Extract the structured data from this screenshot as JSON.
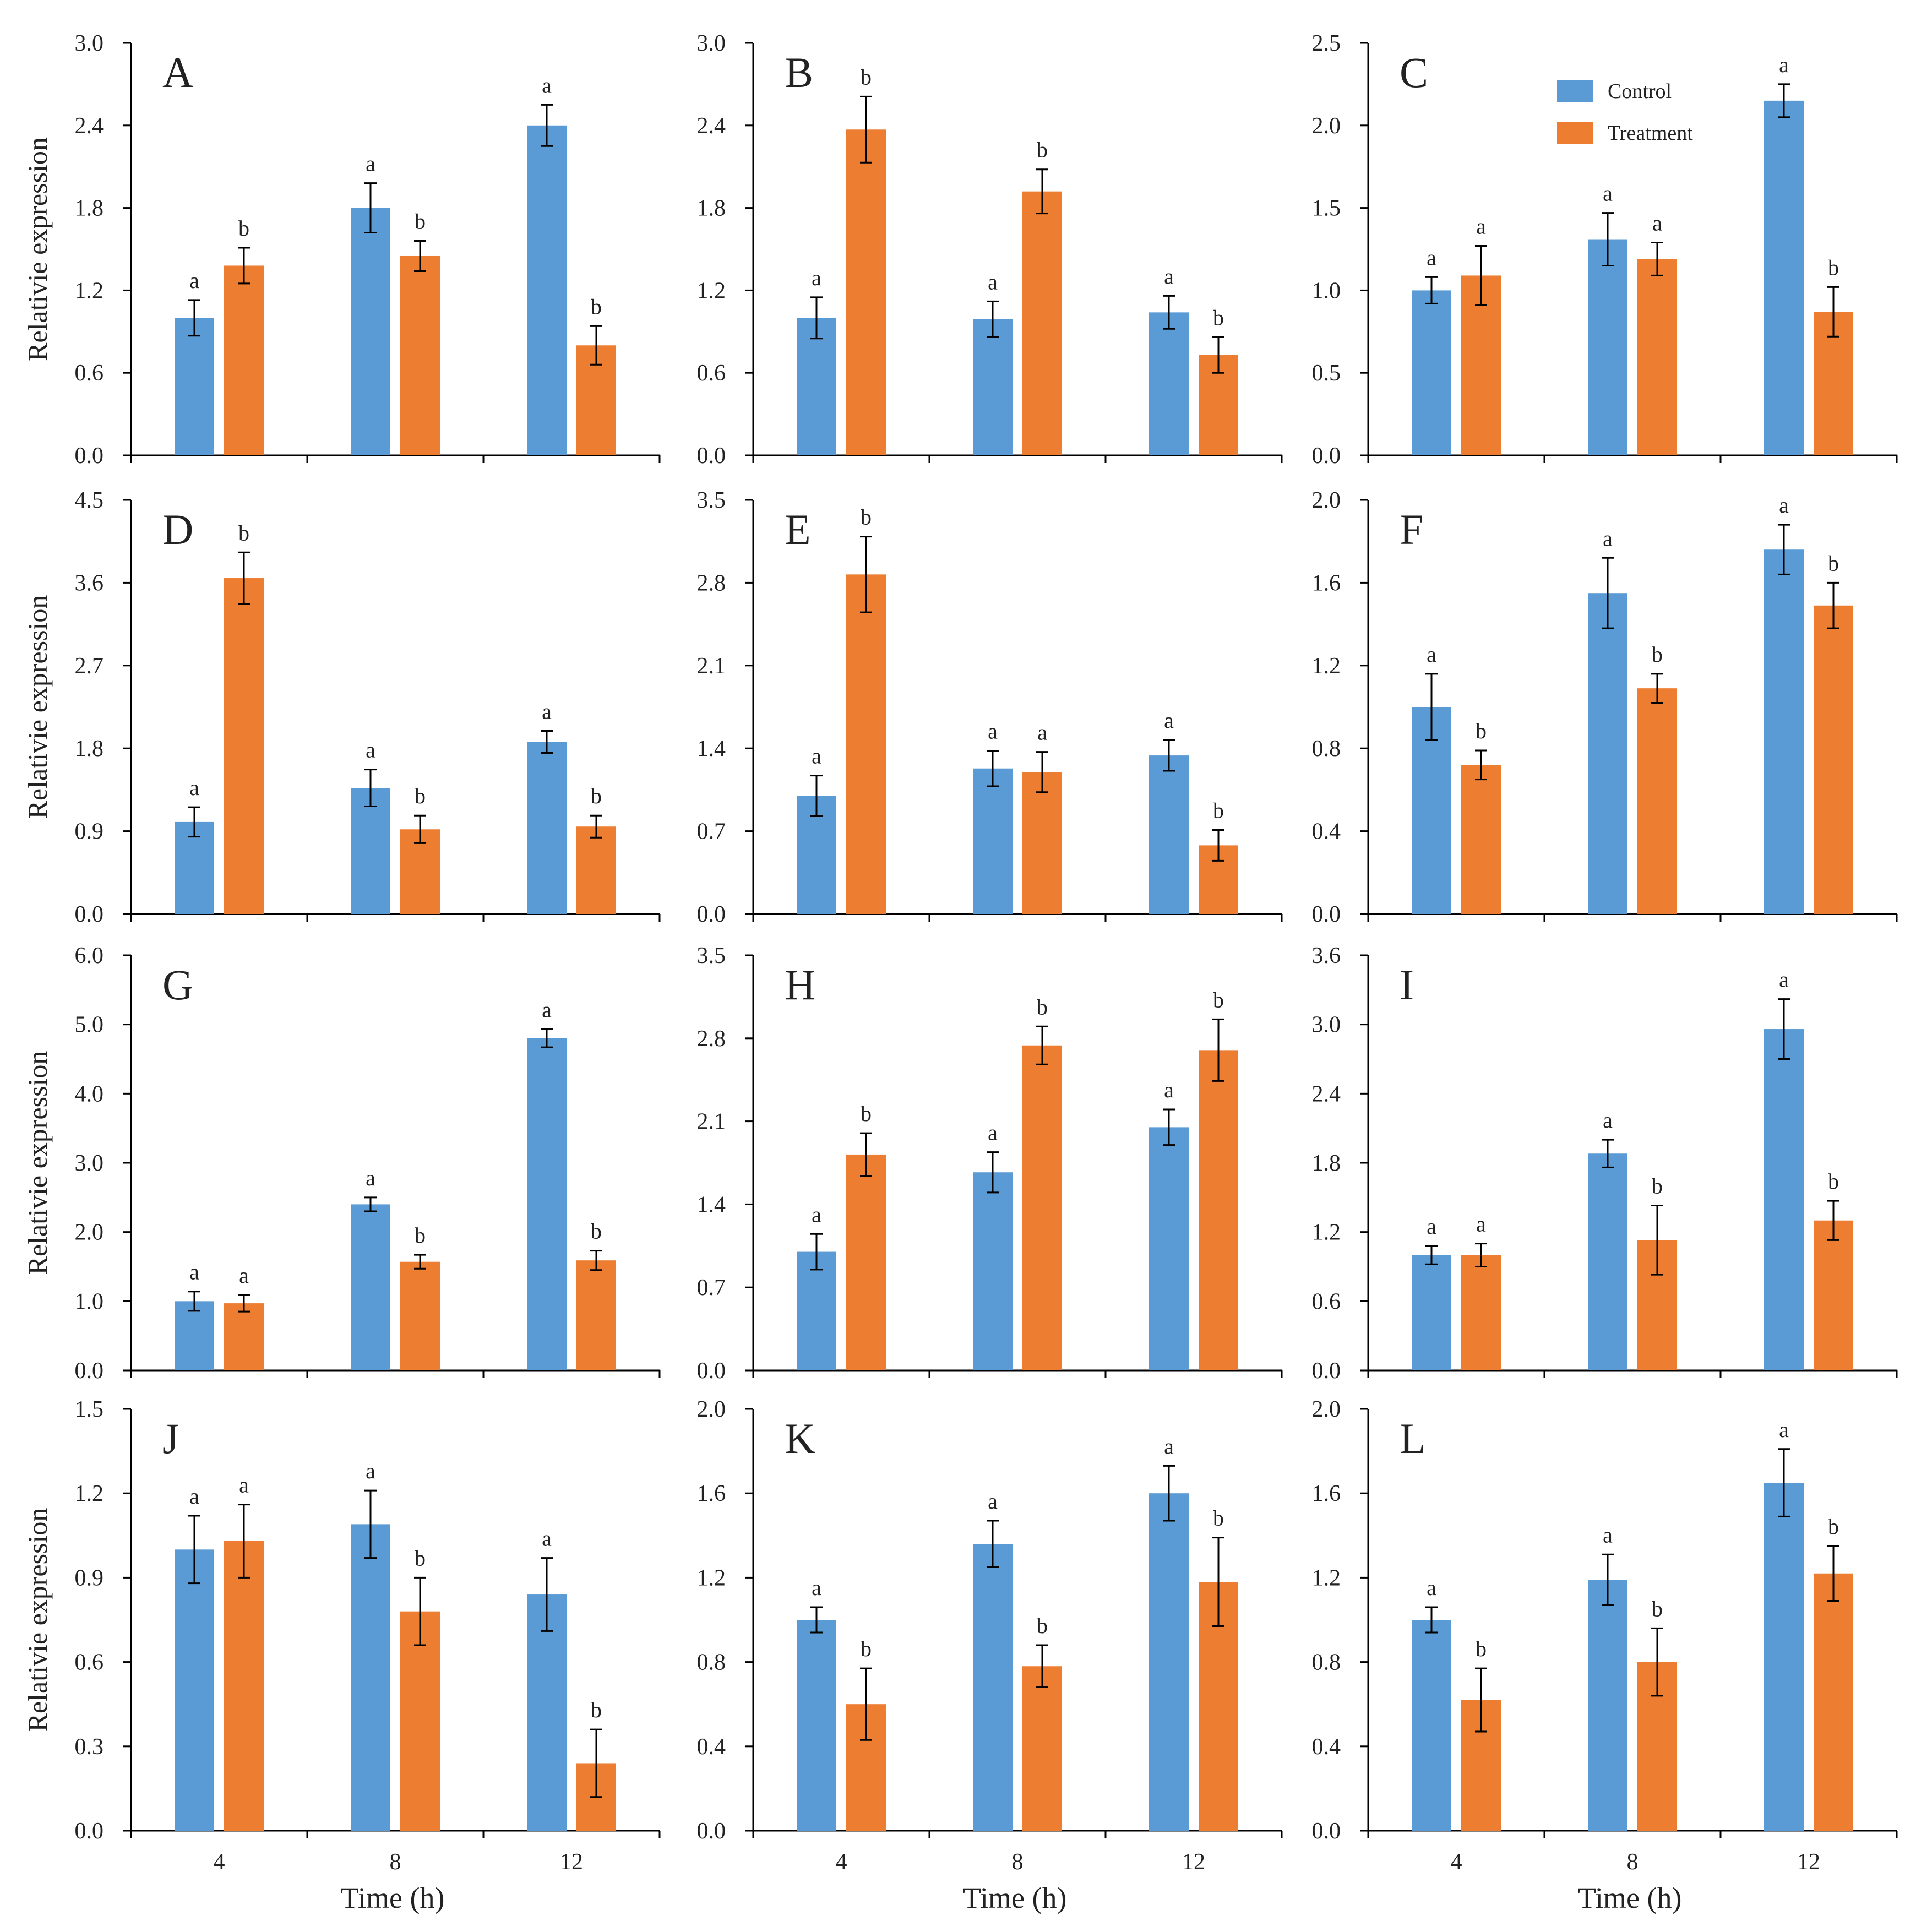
{
  "figure": {
    "legend": [
      {
        "name": "Control",
        "color": "#5B9BD5"
      },
      {
        "name": "Treatment",
        "color": "#ED7D31"
      }
    ],
    "x_label": "Time (h)",
    "y_label": "Relativie expression",
    "error_bar_color": "#000000"
  },
  "chart_data": [
    {
      "type": "bar",
      "panel": "A",
      "categories": [
        "4",
        "8",
        "12"
      ],
      "ylim": [
        0,
        3.0
      ],
      "ticks": [
        "0.0",
        "0.6",
        "1.2",
        "1.8",
        "2.4",
        "3.0"
      ],
      "ylabel": "Relativie expression",
      "xlabel": "",
      "series": [
        {
          "name": "Control",
          "values": [
            1.0,
            1.8,
            2.4
          ],
          "errors": [
            0.13,
            0.18,
            0.15
          ],
          "labels": [
            "a",
            "a",
            "a"
          ]
        },
        {
          "name": "Treatment",
          "values": [
            1.38,
            1.45,
            0.8
          ],
          "errors": [
            0.13,
            0.11,
            0.14
          ],
          "labels": [
            "b",
            "b",
            "b"
          ]
        }
      ]
    },
    {
      "type": "bar",
      "panel": "B",
      "categories": [
        "4",
        "8",
        "12"
      ],
      "ylim": [
        0,
        3.0
      ],
      "ticks": [
        "0.0",
        "0.6",
        "1.2",
        "1.8",
        "2.4",
        "3.0"
      ],
      "ylabel": "",
      "xlabel": "",
      "series": [
        {
          "name": "Control",
          "values": [
            1.0,
            0.99,
            1.04
          ],
          "errors": [
            0.15,
            0.13,
            0.12
          ],
          "labels": [
            "a",
            "a",
            "a"
          ]
        },
        {
          "name": "Treatment",
          "values": [
            2.37,
            1.92,
            0.73
          ],
          "errors": [
            0.24,
            0.16,
            0.13
          ],
          "labels": [
            "b",
            "b",
            "b"
          ]
        }
      ]
    },
    {
      "type": "bar",
      "panel": "C",
      "categories": [
        "4",
        "8",
        "12"
      ],
      "ylim": [
        0,
        2.5
      ],
      "ticks": [
        "0.0",
        "0.5",
        "1.0",
        "1.5",
        "2.0",
        "2.5"
      ],
      "ylabel": "",
      "xlabel": "",
      "series": [
        {
          "name": "Control",
          "values": [
            1.0,
            1.31,
            2.15
          ],
          "errors": [
            0.08,
            0.16,
            0.1
          ],
          "labels": [
            "a",
            "a",
            "a"
          ]
        },
        {
          "name": "Treatment",
          "values": [
            1.09,
            1.19,
            0.87
          ],
          "errors": [
            0.18,
            0.1,
            0.15
          ],
          "labels": [
            "a",
            "a",
            "b"
          ]
        }
      ]
    },
    {
      "type": "bar",
      "panel": "D",
      "categories": [
        "4",
        "8",
        "12"
      ],
      "ylim": [
        0,
        4.5
      ],
      "ticks": [
        "0.0",
        "0.9",
        "1.8",
        "2.7",
        "3.6",
        "4.5"
      ],
      "ylabel": "Relativie expression",
      "xlabel": "",
      "series": [
        {
          "name": "Control",
          "values": [
            1.0,
            1.37,
            1.87
          ],
          "errors": [
            0.16,
            0.2,
            0.12
          ],
          "labels": [
            "a",
            "a",
            "a"
          ]
        },
        {
          "name": "Treatment",
          "values": [
            3.65,
            0.92,
            0.95
          ],
          "errors": [
            0.28,
            0.15,
            0.12
          ],
          "labels": [
            "b",
            "b",
            "b"
          ]
        }
      ]
    },
    {
      "type": "bar",
      "panel": "E",
      "categories": [
        "4",
        "8",
        "12"
      ],
      "ylim": [
        0,
        3.5
      ],
      "ticks": [
        "0.0",
        "0.7",
        "1.4",
        "2.1",
        "2.8",
        "3.5"
      ],
      "ylabel": "",
      "xlabel": "",
      "series": [
        {
          "name": "Control",
          "values": [
            1.0,
            1.23,
            1.34
          ],
          "errors": [
            0.17,
            0.15,
            0.13
          ],
          "labels": [
            "a",
            "a",
            "a"
          ]
        },
        {
          "name": "Treatment",
          "values": [
            2.87,
            1.2,
            0.58
          ],
          "errors": [
            0.32,
            0.17,
            0.13
          ],
          "labels": [
            "b",
            "a",
            "b"
          ]
        }
      ]
    },
    {
      "type": "bar",
      "panel": "F",
      "categories": [
        "4",
        "8",
        "12"
      ],
      "ylim": [
        0,
        2.0
      ],
      "ticks": [
        "0.0",
        "0.4",
        "0.8",
        "1.2",
        "1.6",
        "2.0"
      ],
      "ylabel": "",
      "xlabel": "",
      "series": [
        {
          "name": "Control",
          "values": [
            1.0,
            1.55,
            1.76
          ],
          "errors": [
            0.16,
            0.17,
            0.12
          ],
          "labels": [
            "a",
            "a",
            "a"
          ]
        },
        {
          "name": "Treatment",
          "values": [
            0.72,
            1.09,
            1.49
          ],
          "errors": [
            0.07,
            0.07,
            0.11
          ],
          "labels": [
            "b",
            "b",
            "b"
          ]
        }
      ]
    },
    {
      "type": "bar",
      "panel": "G",
      "categories": [
        "4",
        "8",
        "12"
      ],
      "ylim": [
        0,
        6.0
      ],
      "ticks": [
        "0.0",
        "1.0",
        "2.0",
        "3.0",
        "4.0",
        "5.0",
        "6.0"
      ],
      "ylabel": "Relativie expression",
      "xlabel": "",
      "series": [
        {
          "name": "Control",
          "values": [
            1.0,
            2.4,
            4.8
          ],
          "errors": [
            0.14,
            0.1,
            0.13
          ],
          "labels": [
            "a",
            "a",
            "a"
          ]
        },
        {
          "name": "Treatment",
          "values": [
            0.97,
            1.57,
            1.59
          ],
          "errors": [
            0.12,
            0.1,
            0.14
          ],
          "labels": [
            "a",
            "b",
            "b"
          ]
        }
      ]
    },
    {
      "type": "bar",
      "panel": "H",
      "categories": [
        "4",
        "8",
        "12"
      ],
      "ylim": [
        0,
        3.5
      ],
      "ticks": [
        "0.0",
        "0.7",
        "1.4",
        "2.1",
        "2.8",
        "3.5"
      ],
      "ylabel": "",
      "xlabel": "",
      "series": [
        {
          "name": "Control",
          "values": [
            1.0,
            1.67,
            2.05
          ],
          "errors": [
            0.15,
            0.17,
            0.15
          ],
          "labels": [
            "a",
            "a",
            "a"
          ]
        },
        {
          "name": "Treatment",
          "values": [
            1.82,
            2.74,
            2.7
          ],
          "errors": [
            0.18,
            0.16,
            0.26
          ],
          "labels": [
            "b",
            "b",
            "b"
          ]
        }
      ]
    },
    {
      "type": "bar",
      "panel": "I",
      "categories": [
        "4",
        "8",
        "12"
      ],
      "ylim": [
        0,
        3.6
      ],
      "ticks": [
        "0.0",
        "0.6",
        "1.2",
        "1.8",
        "2.4",
        "3.0",
        "3.6"
      ],
      "ylabel": "",
      "xlabel": "",
      "series": [
        {
          "name": "Control",
          "values": [
            1.0,
            1.88,
            2.96
          ],
          "errors": [
            0.08,
            0.12,
            0.26
          ],
          "labels": [
            "a",
            "a",
            "a"
          ]
        },
        {
          "name": "Treatment",
          "values": [
            1.0,
            1.13,
            1.3
          ],
          "errors": [
            0.1,
            0.3,
            0.17
          ],
          "labels": [
            "a",
            "b",
            "b"
          ]
        }
      ]
    },
    {
      "type": "bar",
      "panel": "J",
      "categories": [
        "4",
        "8",
        "12"
      ],
      "ylim": [
        0,
        1.5
      ],
      "ticks": [
        "0.0",
        "0.3",
        "0.6",
        "0.9",
        "1.2",
        "1.5"
      ],
      "ylabel": "Relativie expression",
      "xlabel": "Time (h)",
      "series": [
        {
          "name": "Control",
          "values": [
            1.0,
            1.09,
            0.84
          ],
          "errors": [
            0.12,
            0.12,
            0.13
          ],
          "labels": [
            "a",
            "a",
            "a"
          ]
        },
        {
          "name": "Treatment",
          "values": [
            1.03,
            0.78,
            0.24
          ],
          "errors": [
            0.13,
            0.12,
            0.12
          ],
          "labels": [
            "a",
            "b",
            "b"
          ]
        }
      ]
    },
    {
      "type": "bar",
      "panel": "K",
      "categories": [
        "4",
        "8",
        "12"
      ],
      "ylim": [
        0,
        2.0
      ],
      "ticks": [
        "0.0",
        "0.4",
        "0.8",
        "1.2",
        "1.6",
        "2.0"
      ],
      "ylabel": "",
      "xlabel": "Time (h)",
      "series": [
        {
          "name": "Control",
          "values": [
            1.0,
            1.36,
            1.6
          ],
          "errors": [
            0.06,
            0.11,
            0.13
          ],
          "labels": [
            "a",
            "a",
            "a"
          ]
        },
        {
          "name": "Treatment",
          "values": [
            0.6,
            0.78,
            1.18
          ],
          "errors": [
            0.17,
            0.1,
            0.21
          ],
          "labels": [
            "b",
            "b",
            "b"
          ]
        }
      ]
    },
    {
      "type": "bar",
      "panel": "L",
      "categories": [
        "4",
        "8",
        "12"
      ],
      "ylim": [
        0,
        2.0
      ],
      "ticks": [
        "0.0",
        "0.4",
        "0.8",
        "1.2",
        "1.6",
        "2.0"
      ],
      "ylabel": "",
      "xlabel": "Time (h)",
      "series": [
        {
          "name": "Control",
          "values": [
            1.0,
            1.19,
            1.65
          ],
          "errors": [
            0.06,
            0.12,
            0.16
          ],
          "labels": [
            "a",
            "a",
            "a"
          ]
        },
        {
          "name": "Treatment",
          "values": [
            0.62,
            0.8,
            1.22
          ],
          "errors": [
            0.15,
            0.16,
            0.13
          ],
          "labels": [
            "b",
            "b",
            "b"
          ]
        }
      ]
    }
  ]
}
